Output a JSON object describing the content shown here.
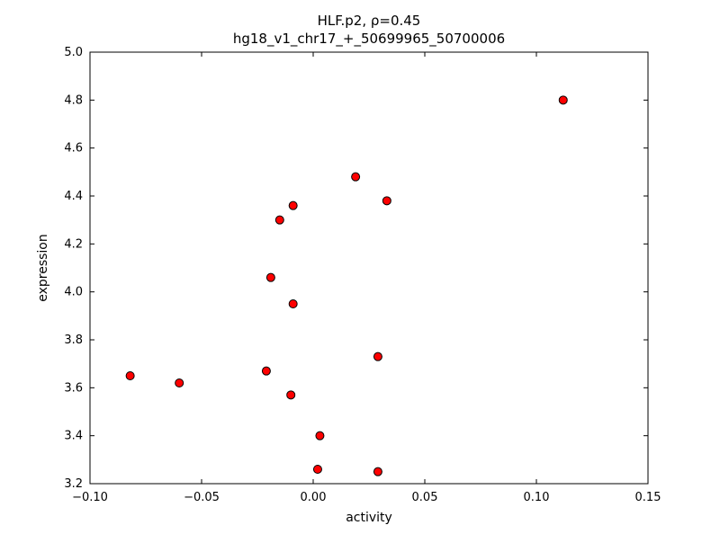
{
  "figure": {
    "title_line1": "HLF.p2, ρ=0.45",
    "title_line2": "hg18_v1_chr17_+_50699965_50700006",
    "xlabel": "activity",
    "ylabel": "expression"
  },
  "chart_data": {
    "type": "scatter",
    "title": "HLF.p2, ρ=0.45",
    "subtitle": "hg18_v1_chr17_+_50699965_50700006",
    "xlabel": "activity",
    "ylabel": "expression",
    "xlim": [
      -0.1,
      0.15
    ],
    "ylim": [
      3.2,
      5.0
    ],
    "xticks": [
      -0.1,
      -0.05,
      0.0,
      0.05,
      0.1,
      0.15
    ],
    "yticks": [
      3.2,
      3.4,
      3.6,
      3.8,
      4.0,
      4.2,
      4.4,
      4.6,
      4.8,
      5.0
    ],
    "grid": false,
    "legend": "none",
    "correlation_rho": 0.45,
    "marker": {
      "shape": "circle",
      "face_color": "#ff0000",
      "edge_color": "#000000",
      "radius": 4.5
    },
    "axis_color": "#000000",
    "background_color": "#ffffff",
    "points": [
      [
        -0.082,
        3.65
      ],
      [
        -0.06,
        3.62
      ],
      [
        -0.021,
        3.67
      ],
      [
        -0.019,
        4.06
      ],
      [
        -0.015,
        4.3
      ],
      [
        -0.01,
        3.57
      ],
      [
        -0.009,
        4.36
      ],
      [
        -0.009,
        3.95
      ],
      [
        0.002,
        3.26
      ],
      [
        0.003,
        3.4
      ],
      [
        0.019,
        4.48
      ],
      [
        0.029,
        3.25
      ],
      [
        0.029,
        3.73
      ],
      [
        0.033,
        4.38
      ],
      [
        0.112,
        4.8
      ]
    ]
  }
}
